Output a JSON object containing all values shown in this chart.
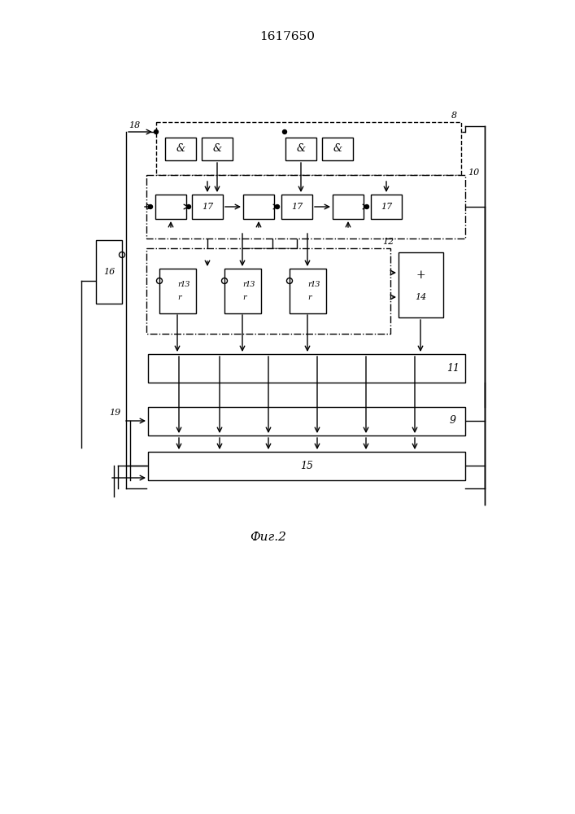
{
  "title": "1617650",
  "caption": "Фиг.2",
  "bg_color": "#ffffff",
  "title_fontsize": 11,
  "caption_fontsize": 11,
  "figsize": [
    7.07,
    10.0
  ],
  "dpi": 100,
  "and_label": "&",
  "label_8": "8",
  "label_9": "9",
  "label_10": "10",
  "label_11": "11",
  "label_12": "12",
  "label_13": "13",
  "label_14": "14",
  "label_15": "15",
  "label_16": "16",
  "label_17": "17",
  "label_18": "18",
  "label_19": "19",
  "label_r": "r",
  "label_plus": "+"
}
